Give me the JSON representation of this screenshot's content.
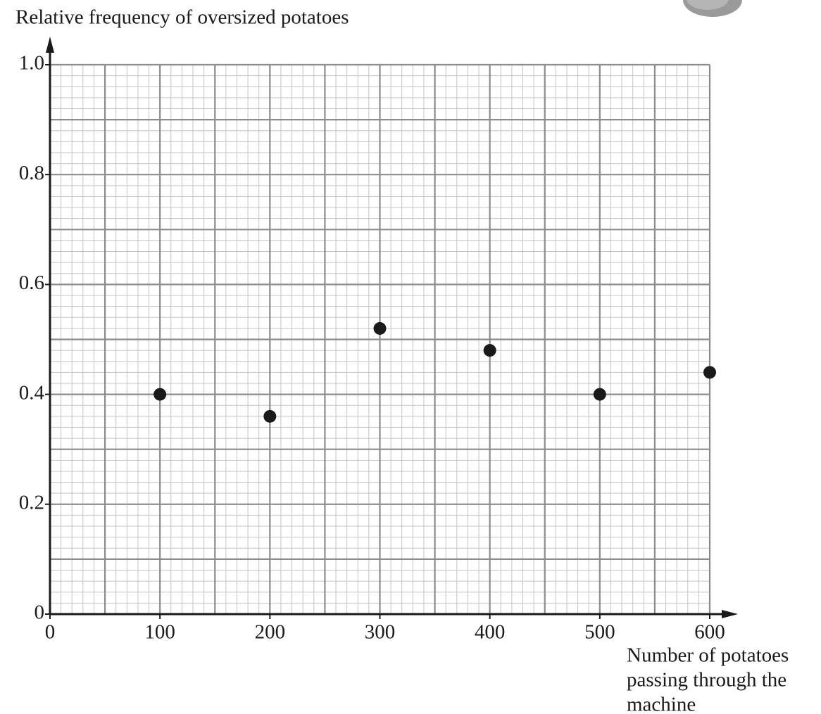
{
  "chart_data": {
    "type": "scatter",
    "y_label": "Relative frequency of oversized potatoes",
    "x_label": [
      "Number of potatoes",
      "passing through the",
      "machine"
    ],
    "x": [
      100,
      200,
      300,
      400,
      500,
      600
    ],
    "values": [
      0.4,
      0.36,
      0.52,
      0.48,
      0.4,
      0.44
    ],
    "color": "#1a1a1a",
    "xlim": [
      0,
      600
    ],
    "xticks": [
      0,
      100,
      200,
      300,
      400,
      500,
      600
    ],
    "ylim": [
      0,
      1
    ],
    "yticks": [
      0,
      0.2,
      0.4,
      0.6,
      0.8,
      {
        "value": 1,
        "label": "1.0"
      }
    ],
    "grid": true
  }
}
